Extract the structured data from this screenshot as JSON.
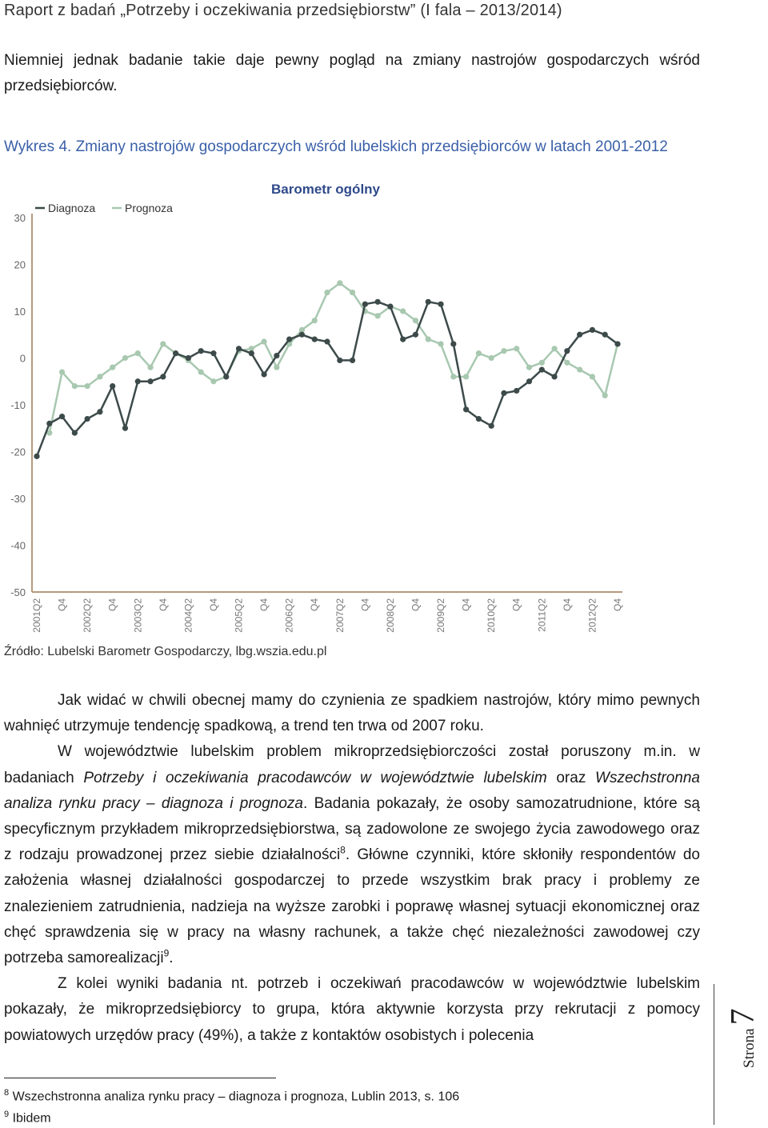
{
  "header": {
    "text": "Raport z badań „Potrzeby i oczekiwania przedsiębiorstw” (I fala – 2013/2014)"
  },
  "intro": "Niemniej jednak badanie takie daje pewny pogląd na zmiany nastrojów gospodarczych wśród przedsiębiorców.",
  "figure_caption": "Wykres 4. Zmiany nastrojów gospodarczych wśród lubelskich przedsiębiorców w latach 2001-2012",
  "chart_data": {
    "type": "line",
    "title": "Barometr ogólny",
    "legend_position": "top-left",
    "ylim": [
      -50,
      30
    ],
    "yticks": [
      30,
      20,
      10,
      0,
      -10,
      -20,
      -30,
      -40,
      -50
    ],
    "grid": false,
    "x": [
      "2001Q2",
      "Q3",
      "Q4",
      "2002Q1",
      "Q2",
      "Q3",
      "Q4",
      "2003Q1",
      "Q2",
      "Q3",
      "Q4",
      "2004Q1",
      "Q2",
      "Q3",
      "Q4",
      "2005Q1",
      "Q2",
      "Q3",
      "Q4",
      "2006Q1",
      "Q2",
      "Q3",
      "Q4",
      "2007Q1",
      "Q2",
      "Q3",
      "Q4",
      "2008Q1",
      "Q2",
      "Q3",
      "Q4",
      "2009Q1",
      "Q2",
      "Q3",
      "Q4",
      "2010Q1",
      "Q2",
      "Q3",
      "Q4",
      "2011Q1",
      "Q2",
      "Q3",
      "Q4",
      "2012Q1",
      "Q2",
      "Q3",
      "Q4"
    ],
    "xtick_labels": [
      "2001Q2",
      "Q4",
      "2002Q2",
      "Q4",
      "2003Q2",
      "Q4",
      "2004Q2",
      "Q4",
      "2005Q2",
      "Q4",
      "2006Q2",
      "Q4",
      "2007Q2",
      "Q4",
      "2008Q2",
      "Q4",
      "2009Q2",
      "Q4",
      "2010Q2",
      "Q4",
      "2011Q2",
      "Q4",
      "2012Q2",
      "Q4"
    ],
    "series": [
      {
        "name": "Diagnoza",
        "color": "#3d4a4a",
        "values": [
          -21,
          -14,
          -12.5,
          -16,
          -13,
          -11.5,
          -6,
          -15,
          -5,
          -5,
          -4,
          1,
          0,
          1.5,
          1,
          -4,
          2,
          1,
          -3.5,
          0.5,
          4,
          5,
          4,
          3.5,
          -0.5,
          -0.5,
          11.5,
          12,
          11,
          4,
          5,
          12,
          11.5,
          3,
          -11,
          -13,
          -14.5,
          -7.5,
          -7,
          -5,
          -2.5,
          -4,
          1.5,
          5,
          6,
          5,
          3
        ]
      },
      {
        "name": "Prognoza",
        "color": "#a8c8b0",
        "values": [
          null,
          -16,
          -3,
          -6,
          -6,
          -4,
          -2,
          0,
          1,
          -2,
          3,
          1,
          -0.5,
          -3,
          -5,
          -4,
          1.5,
          2,
          3.5,
          -2,
          3,
          6,
          8,
          14,
          16,
          14,
          10,
          9,
          11,
          10,
          8,
          4,
          3,
          -4,
          -4,
          1,
          0,
          1.5,
          2,
          -2,
          -1,
          2,
          -1,
          -2.5,
          -4,
          -8,
          3
        ]
      }
    ]
  },
  "source": "Źródło: Lubelski Barometr Gospodarczy, lbg.wszia.edu.pl",
  "paragraphs": {
    "p1": "Jak widać w chwili obecnej mamy do czynienia ze spadkiem nastrojów, który mimo pewnych wahnięć utrzymuje tendencję spadkową, a trend ten trwa od 2007 roku.",
    "p2_a": "W województwie lubelskim problem mikroprzedsiębiorczości został poruszony m.in. w badaniach ",
    "p2_i1": "Potrzeby i oczekiwania pracodawców w województwie lubelskim",
    "p2_b": " oraz ",
    "p2_i2": "Wszechstronna analiza rynku pracy – diagnoza i prognoza",
    "p2_c": ". Badania pokazały, że osoby samozatrudnione, które są specyficznym przykładem mikroprzedsiębiorstwa, są zadowolone ze swojego życia zawodowego oraz z rodzaju prowadzonej przez siebie działalności",
    "fn8_ref": "8",
    "p2_d": ". Główne czynniki, które skłoniły respondentów do założenia własnej działalności gospodarczej to przede wszystkim brak pracy i problemy ze znalezieniem zatrudnienia, nadzieja na wyższe zarobki i poprawę własnej sytuacji ekonomicznej oraz chęć sprawdzenia się w pracy na własny rachunek, a także chęć niezależności zawodowej czy potrzeba samorealizacji",
    "fn9_ref": "9",
    "p2_e": ".",
    "p3": "Z kolei wyniki badania nt. potrzeb i oczekiwań pracodawców w województwie lubelskim pokazały, że mikroprzedsiębiorcy to grupa, która aktywnie korzysta przy rekrutacji z pomocy powiatowych urzędów pracy (49%), a także z kontaktów osobistych i polecenia"
  },
  "footnotes": [
    {
      "num": "8",
      "text": "Wszechstronna analiza rynku pracy – diagnoza i prognoza, Lublin 2013, s. 106"
    },
    {
      "num": "9",
      "text": "Ibidem"
    }
  ],
  "page_badge": {
    "label": "Strona",
    "number": "7"
  }
}
